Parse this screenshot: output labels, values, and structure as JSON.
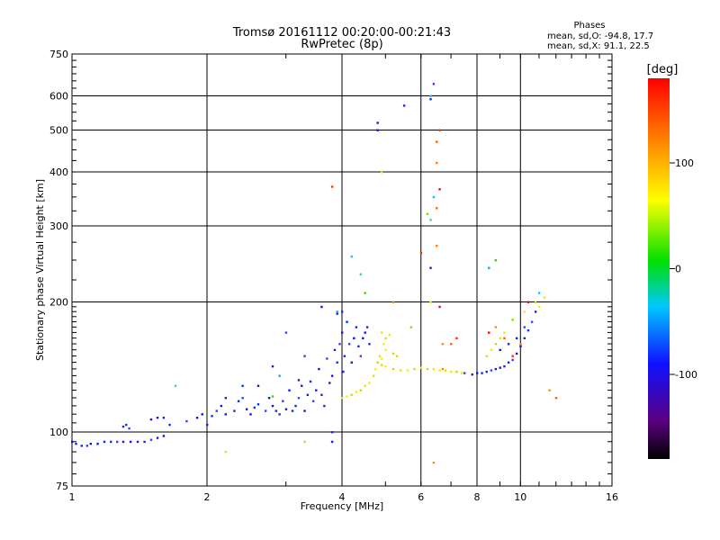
{
  "header": {
    "title_line1": "Tromsø 20161112 00:20:00-00:21:43",
    "title_line2": "RwPretec (8p)"
  },
  "stats": {
    "heading": "Phases",
    "line_o": "mean, sd,O: -94.8, 17.7",
    "line_x": "mean, sd,X:  91.1, 22.5"
  },
  "colorbar": {
    "label": "[deg]",
    "ticks": [
      {
        "value": 100,
        "label": "100"
      },
      {
        "value": 0,
        "label": "0"
      },
      {
        "value": -100,
        "label": "-100"
      }
    ],
    "range": [
      -180,
      180
    ],
    "colors": [
      "#000000",
      "#5a0080",
      "#1010ff",
      "#00c8ff",
      "#00e000",
      "#ffff00",
      "#ff8000",
      "#ff0000"
    ]
  },
  "chart_data": {
    "type": "scatter",
    "title": "Tromsø 20161112 00:20:00-00:21:43",
    "subtitle": "RwPretec (8p)",
    "xlabel": "Frequency [MHz]",
    "ylabel": "Stationary phase Virtual Height [km]",
    "xscale": "log",
    "yscale": "log",
    "xlim": [
      1,
      16
    ],
    "ylim": [
      75,
      750
    ],
    "grid": true,
    "x_ticks": [
      {
        "value": 1,
        "label": "1"
      },
      {
        "value": 2,
        "label": "2"
      },
      {
        "value": 4,
        "label": "4"
      },
      {
        "value": 6,
        "label": "6"
      },
      {
        "value": 8,
        "label": "8"
      },
      {
        "value": 10,
        "label": "10"
      },
      {
        "value": 16,
        "label": "16"
      }
    ],
    "y_ticks": [
      {
        "value": 75,
        "label": "75"
      },
      {
        "value": 100,
        "label": "100"
      },
      {
        "value": 200,
        "label": "200"
      },
      {
        "value": 300,
        "label": "300"
      },
      {
        "value": 400,
        "label": "400"
      },
      {
        "value": 500,
        "label": "500"
      },
      {
        "value": 600,
        "label": "600"
      },
      {
        "value": 750,
        "label": "750"
      }
    ],
    "series": [
      {
        "colors": "blue",
        "points": [
          [
            1.0,
            95
          ],
          [
            1.02,
            94
          ],
          [
            1.05,
            93
          ],
          [
            1.08,
            93
          ],
          [
            1.1,
            94
          ],
          [
            1.14,
            94
          ],
          [
            1.18,
            95
          ],
          [
            1.22,
            95
          ],
          [
            1.26,
            95
          ],
          [
            1.3,
            95
          ],
          [
            1.35,
            95
          ],
          [
            1.4,
            95
          ],
          [
            1.45,
            95
          ],
          [
            1.5,
            96
          ],
          [
            1.55,
            97
          ],
          [
            1.6,
            98
          ],
          [
            1.3,
            103
          ],
          [
            1.32,
            104
          ],
          [
            1.34,
            102
          ],
          [
            1.5,
            107
          ],
          [
            1.55,
            108
          ],
          [
            1.6,
            108
          ],
          [
            1.65,
            104
          ],
          [
            1.8,
            106
          ],
          [
            1.9,
            108
          ],
          [
            1.95,
            110
          ],
          [
            2.0,
            104
          ],
          [
            2.05,
            109
          ],
          [
            2.1,
            112
          ],
          [
            2.15,
            115
          ],
          [
            2.2,
            110
          ],
          [
            2.3,
            112
          ],
          [
            2.35,
            118
          ],
          [
            2.4,
            120
          ],
          [
            2.45,
            113
          ],
          [
            2.5,
            110
          ],
          [
            2.55,
            114
          ],
          [
            2.6,
            116
          ],
          [
            2.7,
            112
          ],
          [
            2.75,
            120
          ],
          [
            2.8,
            115
          ],
          [
            2.85,
            112
          ],
          [
            2.9,
            110
          ],
          [
            2.95,
            118
          ],
          [
            3.0,
            113
          ],
          [
            3.05,
            125
          ],
          [
            3.1,
            112
          ],
          [
            3.15,
            115
          ],
          [
            3.2,
            120
          ],
          [
            3.25,
            128
          ],
          [
            3.3,
            112
          ],
          [
            3.35,
            122
          ],
          [
            3.4,
            131
          ],
          [
            3.45,
            118
          ],
          [
            3.5,
            125
          ],
          [
            3.55,
            140
          ],
          [
            3.6,
            122
          ],
          [
            3.65,
            115
          ],
          [
            3.7,
            148
          ],
          [
            3.75,
            130
          ],
          [
            3.8,
            135
          ],
          [
            3.85,
            155
          ],
          [
            3.9,
            145
          ],
          [
            3.95,
            160
          ],
          [
            4.0,
            170
          ],
          [
            4.02,
            138
          ],
          [
            4.05,
            150
          ],
          [
            4.1,
            180
          ],
          [
            4.15,
            160
          ],
          [
            4.2,
            145
          ],
          [
            4.25,
            165
          ],
          [
            4.3,
            175
          ],
          [
            4.35,
            158
          ],
          [
            4.4,
            150
          ],
          [
            4.45,
            165
          ],
          [
            4.5,
            170
          ],
          [
            4.55,
            175
          ],
          [
            4.6,
            160
          ],
          [
            3.0,
            170
          ],
          [
            2.8,
            142
          ],
          [
            3.6,
            195
          ],
          [
            3.9,
            188
          ],
          [
            4.0,
            190
          ],
          [
            3.3,
            150
          ],
          [
            3.2,
            132
          ],
          [
            2.6,
            128
          ],
          [
            2.2,
            120
          ],
          [
            2.4,
            128
          ],
          [
            7.5,
            137
          ],
          [
            7.8,
            136
          ],
          [
            8.0,
            137
          ],
          [
            8.2,
            137
          ],
          [
            8.4,
            138
          ],
          [
            8.6,
            139
          ],
          [
            8.8,
            140
          ],
          [
            9.0,
            141
          ],
          [
            9.2,
            142
          ],
          [
            9.4,
            145
          ],
          [
            9.6,
            147
          ],
          [
            9.8,
            152
          ],
          [
            10.0,
            158
          ],
          [
            10.2,
            165
          ],
          [
            10.4,
            172
          ],
          [
            10.6,
            180
          ],
          [
            10.8,
            190
          ],
          [
            9.0,
            155
          ],
          [
            9.4,
            160
          ],
          [
            9.8,
            165
          ],
          [
            10.2,
            175
          ],
          [
            4.8,
            520
          ],
          [
            4.8,
            500
          ],
          [
            5.5,
            570
          ],
          [
            6.3,
            590
          ],
          [
            6.4,
            640
          ],
          [
            6.3,
            240
          ],
          [
            3.8,
            95
          ],
          [
            3.8,
            100
          ]
        ]
      },
      {
        "colors": "yellow",
        "points": [
          [
            4.0,
            120
          ],
          [
            4.1,
            121
          ],
          [
            4.2,
            122
          ],
          [
            4.3,
            124
          ],
          [
            4.4,
            125
          ],
          [
            4.5,
            128
          ],
          [
            4.6,
            130
          ],
          [
            4.7,
            135
          ],
          [
            4.75,
            140
          ],
          [
            4.8,
            145
          ],
          [
            4.85,
            150
          ],
          [
            4.9,
            148
          ],
          [
            4.9,
            143
          ],
          [
            5.0,
            142
          ],
          [
            5.2,
            140
          ],
          [
            5.4,
            139
          ],
          [
            5.6,
            139
          ],
          [
            5.8,
            140
          ],
          [
            6.0,
            141
          ],
          [
            6.2,
            140
          ],
          [
            6.4,
            140
          ],
          [
            6.6,
            139
          ],
          [
            6.8,
            139
          ],
          [
            7.0,
            138
          ],
          [
            7.2,
            138
          ],
          [
            7.4,
            137
          ],
          [
            4.95,
            160
          ],
          [
            5.0,
            165
          ],
          [
            5.1,
            168
          ],
          [
            5.2,
            152
          ],
          [
            4.9,
            170
          ],
          [
            5.0,
            155
          ],
          [
            5.3,
            150
          ],
          [
            8.6,
            155
          ],
          [
            8.8,
            160
          ],
          [
            9.0,
            165
          ],
          [
            9.2,
            170
          ],
          [
            8.4,
            150
          ],
          [
            10.2,
            190
          ],
          [
            10.8,
            200
          ],
          [
            11.3,
            205
          ],
          [
            11.0,
            195
          ],
          [
            4.9,
            400
          ],
          [
            6.3,
            200
          ],
          [
            3.3,
            95
          ],
          [
            2.2,
            90
          ]
        ]
      },
      {
        "colors": "orange-red",
        "points": [
          [
            6.5,
            470
          ],
          [
            6.6,
            500
          ],
          [
            6.5,
            420
          ],
          [
            6.6,
            365
          ],
          [
            6.4,
            85
          ],
          [
            6.5,
            330
          ],
          [
            6.0,
            260
          ],
          [
            6.5,
            270
          ],
          [
            6.6,
            195
          ],
          [
            6.7,
            160
          ],
          [
            7.0,
            160
          ],
          [
            7.2,
            165
          ],
          [
            6.7,
            140
          ],
          [
            8.5,
            170
          ],
          [
            8.8,
            175
          ],
          [
            9.2,
            165
          ],
          [
            9.6,
            150
          ],
          [
            10.0,
            160
          ],
          [
            10.4,
            200
          ],
          [
            11.6,
            125
          ],
          [
            12.0,
            120
          ],
          [
            3.8,
            370
          ],
          [
            5.2,
            200
          ]
        ]
      },
      {
        "colors": "cyan-green",
        "points": [
          [
            4.2,
            255
          ],
          [
            4.4,
            232
          ],
          [
            4.5,
            210
          ],
          [
            3.9,
            190
          ],
          [
            6.2,
            320
          ],
          [
            6.4,
            350
          ],
          [
            6.3,
            310
          ],
          [
            8.8,
            250
          ],
          [
            8.5,
            240
          ],
          [
            9.6,
            182
          ],
          [
            11.0,
            210
          ],
          [
            1.7,
            128
          ],
          [
            2.8,
            121
          ],
          [
            2.9,
            135
          ],
          [
            5.7,
            175
          ],
          [
            6.3,
            600
          ]
        ]
      }
    ]
  }
}
